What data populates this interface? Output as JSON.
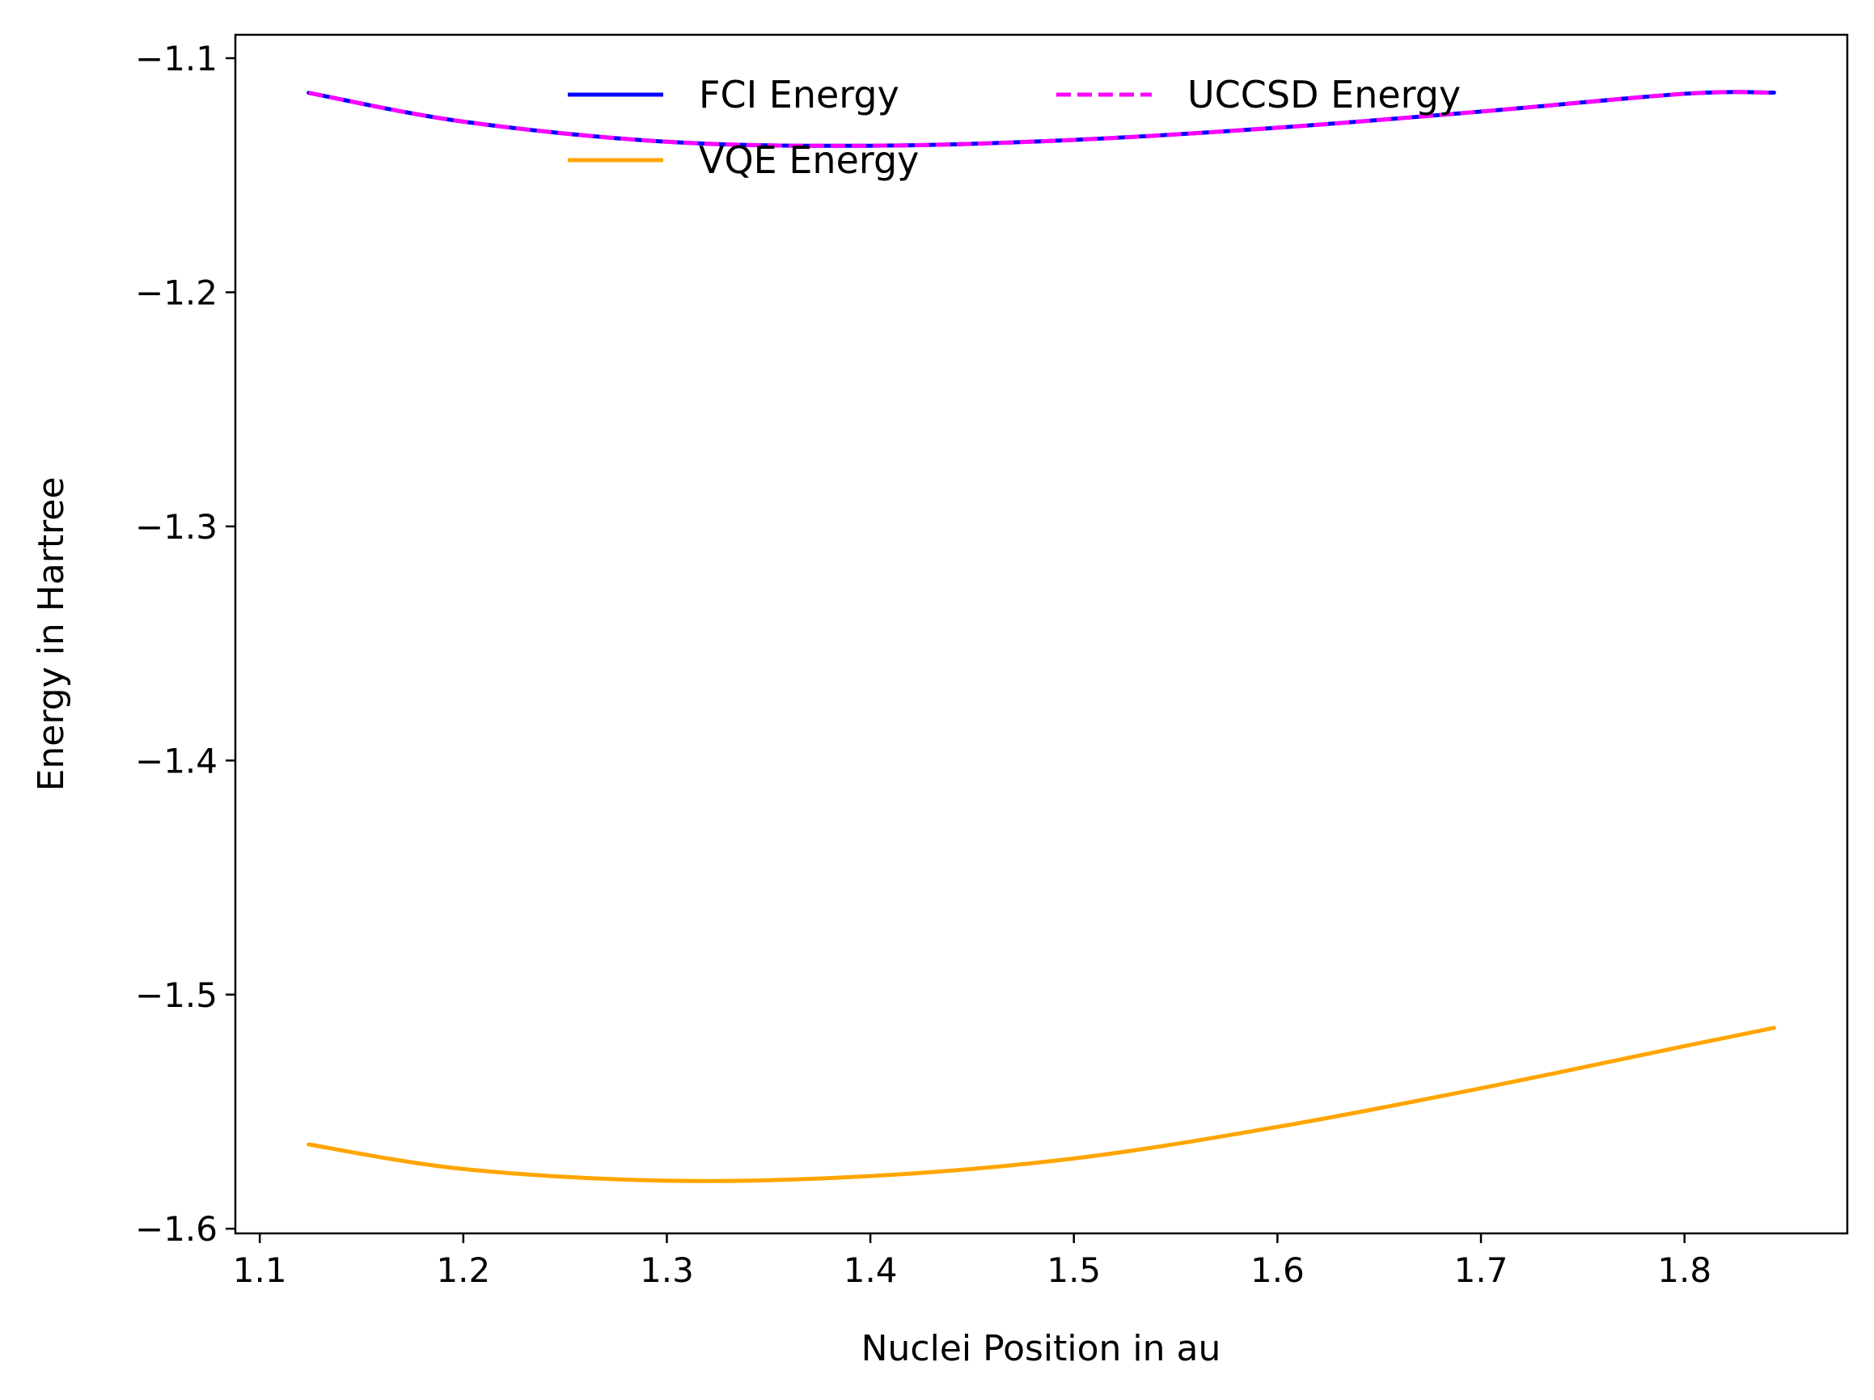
{
  "chart_data": {
    "type": "line",
    "title": "",
    "xlabel": "Nuclei Position in au",
    "ylabel": "Energy in Hartree",
    "xlim": [
      1.088,
      1.88
    ],
    "ylim": [
      -1.602,
      -1.09
    ],
    "x_ticks": [
      1.1,
      1.2,
      1.3,
      1.4,
      1.5,
      1.6,
      1.7,
      1.8
    ],
    "x_tick_labels": [
      "1.1",
      "1.2",
      "1.3",
      "1.4",
      "1.5",
      "1.6",
      "1.7",
      "1.8"
    ],
    "y_ticks": [
      -1.1,
      -1.2,
      -1.3,
      -1.4,
      -1.5,
      -1.6
    ],
    "y_tick_labels": [
      "−1.1",
      "−1.2",
      "−1.3",
      "−1.4",
      "−1.5",
      "−1.6"
    ],
    "grid": false,
    "legend": {
      "placement": "top-center",
      "columns": 2
    },
    "x": [
      1.124,
      1.2,
      1.3,
      1.4,
      1.5,
      1.6,
      1.7,
      1.8,
      1.844
    ],
    "series": [
      {
        "name": "FCI Energy",
        "color": "#0000ff",
        "style": "solid",
        "values": [
          -1.1148,
          -1.1271,
          -1.1357,
          -1.1374,
          -1.1349,
          -1.1297,
          -1.1228,
          -1.1152,
          -1.1147
        ]
      },
      {
        "name": "VQE Energy",
        "color": "#ffa500",
        "style": "solid",
        "values": [
          -1.564,
          -1.5745,
          -1.5795,
          -1.5775,
          -1.57,
          -1.5565,
          -1.54,
          -1.522,
          -1.5142
        ]
      },
      {
        "name": "UCCSD Energy",
        "color": "#ff00ff",
        "style": "dashed",
        "values": [
          -1.1148,
          -1.1271,
          -1.1357,
          -1.1374,
          -1.1349,
          -1.1297,
          -1.1228,
          -1.1152,
          -1.1147
        ]
      }
    ]
  }
}
